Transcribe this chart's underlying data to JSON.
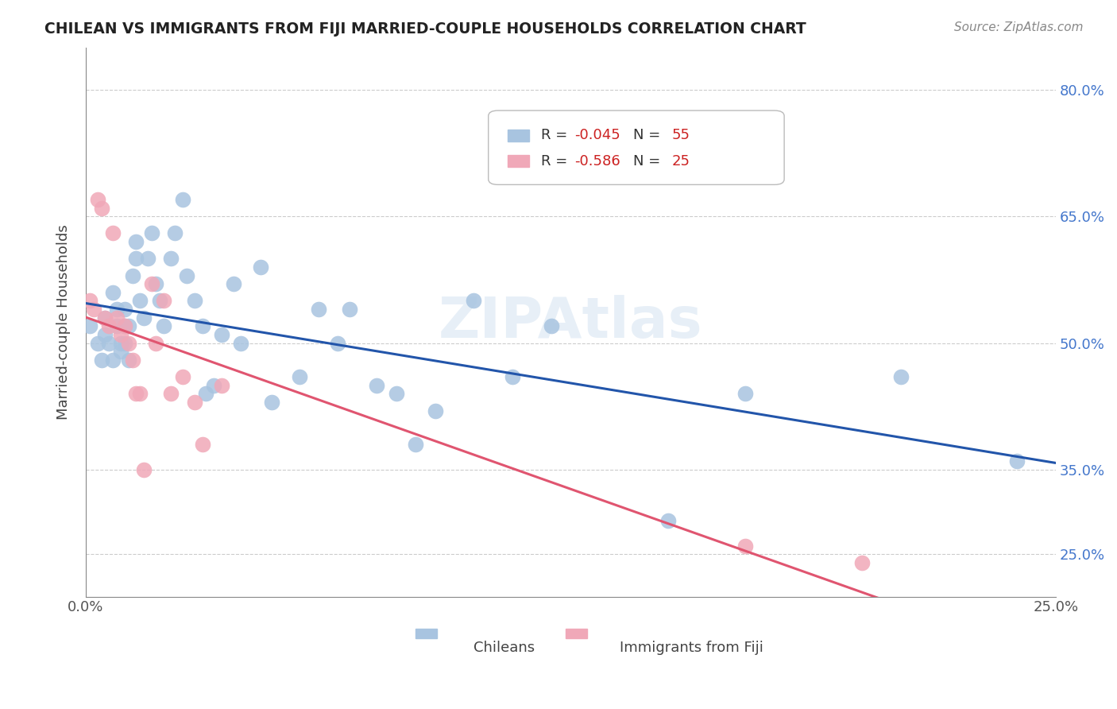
{
  "title": "CHILEAN VS IMMIGRANTS FROM FIJI MARRIED-COUPLE HOUSEHOLDS CORRELATION CHART",
  "source": "Source: ZipAtlas.com",
  "ylabel": "Married-couple Households",
  "xlabel": "",
  "xlim": [
    0.0,
    0.25
  ],
  "ylim": [
    0.2,
    0.85
  ],
  "yticks": [
    0.25,
    0.35,
    0.5,
    0.65,
    0.8
  ],
  "ytick_labels": [
    "25.0%",
    "35.0%",
    "50.0%",
    "65.0%",
    "80.0%"
  ],
  "xticks": [
    0.0,
    0.05,
    0.1,
    0.15,
    0.2,
    0.25
  ],
  "xtick_labels": [
    "0.0%",
    "",
    "",
    "",
    "",
    "25.0%"
  ],
  "blue_r": "-0.045",
  "blue_n": "55",
  "pink_r": "-0.586",
  "pink_n": "25",
  "blue_color": "#a8c4e0",
  "pink_color": "#f0a8b8",
  "blue_line_color": "#2255aa",
  "pink_line_color": "#e05570",
  "watermark": "ZIPAtlas",
  "blue_x": [
    0.001,
    0.003,
    0.004,
    0.005,
    0.005,
    0.006,
    0.007,
    0.007,
    0.008,
    0.008,
    0.009,
    0.009,
    0.01,
    0.01,
    0.01,
    0.011,
    0.011,
    0.012,
    0.013,
    0.013,
    0.014,
    0.015,
    0.016,
    0.017,
    0.018,
    0.019,
    0.02,
    0.022,
    0.023,
    0.025,
    0.026,
    0.028,
    0.03,
    0.031,
    0.033,
    0.035,
    0.038,
    0.04,
    0.045,
    0.048,
    0.055,
    0.06,
    0.065,
    0.068,
    0.075,
    0.08,
    0.085,
    0.09,
    0.1,
    0.11,
    0.12,
    0.15,
    0.17,
    0.21,
    0.24
  ],
  "blue_y": [
    0.52,
    0.5,
    0.48,
    0.53,
    0.51,
    0.5,
    0.56,
    0.48,
    0.54,
    0.52,
    0.5,
    0.49,
    0.52,
    0.5,
    0.54,
    0.52,
    0.48,
    0.58,
    0.6,
    0.62,
    0.55,
    0.53,
    0.6,
    0.63,
    0.57,
    0.55,
    0.52,
    0.6,
    0.63,
    0.67,
    0.58,
    0.55,
    0.52,
    0.44,
    0.45,
    0.51,
    0.57,
    0.5,
    0.59,
    0.43,
    0.46,
    0.54,
    0.5,
    0.54,
    0.45,
    0.44,
    0.38,
    0.42,
    0.55,
    0.46,
    0.52,
    0.29,
    0.44,
    0.46,
    0.36
  ],
  "pink_x": [
    0.001,
    0.002,
    0.003,
    0.004,
    0.005,
    0.006,
    0.007,
    0.008,
    0.009,
    0.01,
    0.011,
    0.012,
    0.013,
    0.014,
    0.015,
    0.017,
    0.018,
    0.02,
    0.022,
    0.025,
    0.028,
    0.03,
    0.035,
    0.17,
    0.2
  ],
  "pink_y": [
    0.55,
    0.54,
    0.67,
    0.66,
    0.53,
    0.52,
    0.63,
    0.53,
    0.51,
    0.52,
    0.5,
    0.48,
    0.44,
    0.44,
    0.35,
    0.57,
    0.5,
    0.55,
    0.44,
    0.46,
    0.43,
    0.38,
    0.45,
    0.26,
    0.24
  ]
}
